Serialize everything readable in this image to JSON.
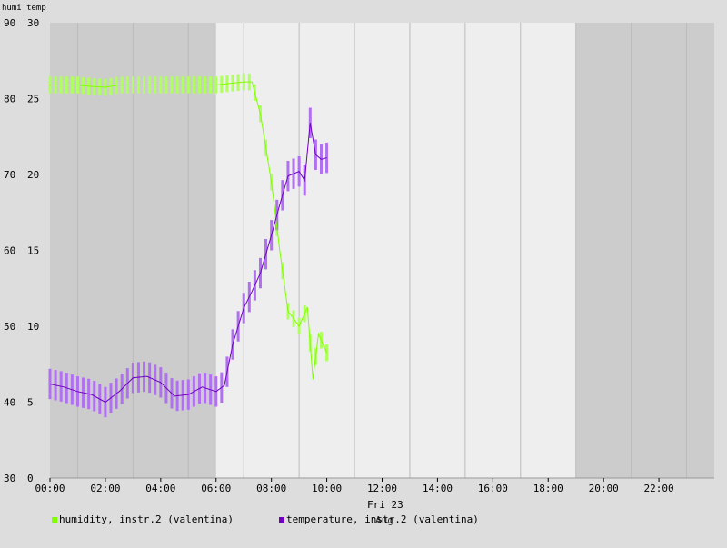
{
  "chart_data": {
    "type": "line",
    "header": "humi temp",
    "left_axis": {
      "ylim": [
        30,
        90
      ],
      "ticks": [
        "90",
        "80",
        "70",
        "60",
        "50",
        "40",
        "30"
      ]
    },
    "right_axis": {
      "ylim": [
        0,
        30
      ],
      "ticks": [
        "30",
        "25",
        "20",
        "15",
        "10",
        "5",
        "0"
      ]
    },
    "x_ticks": [
      "00:00",
      "02:00",
      "04:00",
      "06:00",
      "08:00",
      "10:00",
      "12:00",
      "14:00",
      "16:00",
      "18:00",
      "20:00",
      "22:00"
    ],
    "x_range_hours": [
      0,
      24
    ],
    "date_label": "Fri 23",
    "month_label": "Aug",
    "shaded_night": [
      [
        0,
        6
      ],
      [
        19,
        24
      ]
    ],
    "colors": {
      "humidity": "#80ff00",
      "humidity_bar": "#b0ff60",
      "temperature": "#7000c0",
      "temperature_bar": "#b070f0",
      "night": "#cccccc",
      "day": "#eeeeee"
    },
    "series": [
      {
        "name": "humidity, instr.2 (valentina)",
        "axis": "left",
        "x": [
          0,
          0.5,
          1,
          1.5,
          2,
          2.5,
          3,
          3.5,
          4,
          4.5,
          5,
          5.5,
          6,
          6.5,
          7,
          7.3,
          7.6,
          8,
          8.3,
          8.6,
          9,
          9.3,
          9.5,
          9.7,
          10
        ],
        "y": [
          81.8,
          81.8,
          81.8,
          81.6,
          81.5,
          81.8,
          81.8,
          81.8,
          81.8,
          81.8,
          81.8,
          81.8,
          81.8,
          82,
          82.2,
          82.2,
          78,
          69,
          60,
          52,
          50,
          52.5,
          43,
          49,
          46.5
        ]
      },
      {
        "name": "temperature, instr.2 (valentina)",
        "axis": "right",
        "x": [
          0,
          0.5,
          1,
          1.5,
          2,
          2.5,
          3,
          3.5,
          4,
          4.5,
          5,
          5.5,
          6,
          6.3,
          6.6,
          7,
          7.3,
          7.6,
          8,
          8.3,
          8.6,
          9,
          9.2,
          9.4,
          9.6,
          9.8,
          10
        ],
        "y": [
          6.2,
          6,
          5.7,
          5.5,
          5,
          5.7,
          6.6,
          6.7,
          6.3,
          5.4,
          5.5,
          6,
          5.7,
          6.1,
          8.8,
          11.2,
          12.3,
          13.5,
          16,
          18,
          19.9,
          20.2,
          19.6,
          23.4,
          21.3,
          21,
          21.1
        ]
      }
    ]
  }
}
